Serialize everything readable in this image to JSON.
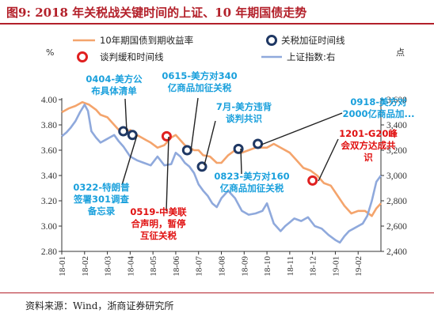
{
  "page": {
    "title": "图9:   2018 年关税战关键时间的上证、10 年期国债走势",
    "source": "资料来源：Wind，浙商证券研究所"
  },
  "colors": {
    "title": "#b3202a",
    "yield_line": "#f4a46c",
    "index_line": "#8fa9dc",
    "tariff_marker": "#1f3864",
    "talks_marker": "#e02020",
    "ann_blue": "#1aa0dc",
    "ann_red": "#e01010"
  },
  "chart_data": {
    "type": "line",
    "left_unit": "%",
    "right_unit": "点",
    "ylim_left": [
      2.8,
      4.0
    ],
    "yticks_left": [
      "2.80",
      "3.00",
      "3.20",
      "3.40",
      "3.60",
      "3.80",
      "4.00"
    ],
    "ylim_right": [
      2400,
      3600
    ],
    "yticks_right": [
      "2,400",
      "2,600",
      "2,800",
      "3,000",
      "3,200",
      "3,400",
      "3,600"
    ],
    "xlim": [
      0,
      14
    ],
    "xticks": [
      "18-01",
      "18-02",
      "18-03",
      "18-04",
      "18-05",
      "18-06",
      "18-07",
      "18-08",
      "18-09",
      "18-10",
      "18-11",
      "18-12",
      "19-01",
      "19-02"
    ],
    "legend": [
      {
        "key": "yield",
        "label": "10年期国债到期收益率"
      },
      {
        "key": "tariff",
        "label": "关税加征时间线"
      },
      {
        "key": "talks",
        "label": "谈判缓和时间线"
      },
      {
        "key": "index",
        "label": "上证指数:右"
      }
    ],
    "series": [
      {
        "name": "10年期国债到期收益率",
        "axis": "left",
        "x": [
          0.0,
          0.3,
          0.6,
          0.9,
          1.2,
          1.5,
          1.7,
          2.0,
          2.3,
          2.5,
          2.7,
          3.0,
          3.3,
          3.5,
          3.7,
          3.9,
          4.2,
          4.5,
          4.8,
          5.0,
          5.2,
          5.4,
          5.6,
          5.8,
          6.0,
          6.2,
          6.5,
          6.8,
          7.0,
          7.3,
          7.6,
          7.9,
          8.2,
          8.5,
          8.8,
          9.0,
          9.3,
          9.6,
          10.0,
          10.3,
          10.6,
          10.9,
          11.2,
          11.5,
          11.8,
          12.1,
          12.4,
          12.7,
          13.0,
          13.3,
          13.6,
          13.8,
          14.0
        ],
        "y": [
          3.9,
          3.93,
          3.95,
          3.98,
          3.96,
          3.92,
          3.88,
          3.86,
          3.8,
          3.76,
          3.72,
          3.76,
          3.72,
          3.7,
          3.68,
          3.66,
          3.62,
          3.64,
          3.7,
          3.72,
          3.68,
          3.64,
          3.62,
          3.6,
          3.6,
          3.56,
          3.55,
          3.5,
          3.5,
          3.56,
          3.6,
          3.58,
          3.6,
          3.62,
          3.62,
          3.62,
          3.65,
          3.62,
          3.58,
          3.52,
          3.46,
          3.44,
          3.4,
          3.34,
          3.32,
          3.24,
          3.16,
          3.1,
          3.12,
          3.12,
          3.08,
          3.14,
          3.18
        ]
      },
      {
        "name": "上证指数:右",
        "axis": "right",
        "x": [
          0.0,
          0.2,
          0.4,
          0.6,
          0.8,
          1.0,
          1.15,
          1.3,
          1.5,
          1.7,
          1.9,
          2.1,
          2.3,
          2.5,
          2.7,
          3.0,
          3.3,
          3.6,
          3.9,
          4.2,
          4.5,
          4.8,
          5.0,
          5.2,
          5.4,
          5.6,
          5.8,
          6.0,
          6.2,
          6.4,
          6.6,
          6.8,
          7.0,
          7.3,
          7.6,
          7.9,
          8.2,
          8.5,
          8.8,
          9.0,
          9.3,
          9.6,
          9.8,
          10.0,
          10.2,
          10.5,
          10.8,
          11.1,
          11.4,
          11.7,
          12.0,
          12.2,
          12.4,
          12.6,
          12.8,
          13.0,
          13.2,
          13.4,
          13.6,
          13.8,
          14.0
        ],
        "y": [
          3310,
          3340,
          3380,
          3430,
          3500,
          3560,
          3510,
          3350,
          3300,
          3260,
          3280,
          3300,
          3320,
          3270,
          3230,
          3150,
          3120,
          3100,
          3080,
          3150,
          3080,
          3090,
          3180,
          3150,
          3100,
          3070,
          3020,
          2930,
          2880,
          2840,
          2780,
          2750,
          2820,
          2880,
          2820,
          2720,
          2690,
          2700,
          2720,
          2780,
          2620,
          2560,
          2600,
          2630,
          2660,
          2640,
          2670,
          2600,
          2580,
          2530,
          2490,
          2470,
          2520,
          2560,
          2580,
          2600,
          2620,
          2680,
          2800,
          2950,
          3000
        ]
      }
    ],
    "events": [
      {
        "type": "tariff",
        "x": 2.7,
        "y": 3.75
      },
      {
        "type": "tariff",
        "x": 3.1,
        "y": 3.72
      },
      {
        "type": "talks",
        "x": 4.6,
        "y": 3.71
      },
      {
        "type": "tariff",
        "x": 5.5,
        "y": 3.6
      },
      {
        "type": "tariff",
        "x": 6.15,
        "y": 3.47
      },
      {
        "type": "tariff",
        "x": 7.75,
        "y": 3.61
      },
      {
        "type": "tariff",
        "x": 8.6,
        "y": 3.65
      },
      {
        "type": "talks",
        "x": 11.0,
        "y": 3.36
      }
    ],
    "annotations": [
      {
        "id": "a0404",
        "color": "blue",
        "lines": [
          "0404-美方公",
          "布具体清单"
        ]
      },
      {
        "id": "a0615",
        "color": "blue",
        "lines": [
          "0615-美方对340",
          "亿商品加征关税"
        ]
      },
      {
        "id": "a7m",
        "color": "blue",
        "lines": [
          "7月-美方违背",
          "谈判共识"
        ]
      },
      {
        "id": "a0918",
        "color": "blue",
        "lines": [
          "0918-美方对",
          "2000亿商品加..."
        ]
      },
      {
        "id": "a1201",
        "color": "red",
        "lines": [
          "1201-G20峰",
          "会双方达成共",
          "识"
        ]
      },
      {
        "id": "a0322",
        "color": "blue",
        "lines": [
          "0322-特朗普",
          "签署301调查",
          "备忘录"
        ]
      },
      {
        "id": "a0823",
        "color": "blue",
        "lines": [
          "0823-美方对160",
          "亿商品加征关税"
        ]
      },
      {
        "id": "a0519",
        "color": "red",
        "lines": [
          "0519-中美联",
          "合声明，暂停",
          "互征关税"
        ]
      }
    ]
  }
}
